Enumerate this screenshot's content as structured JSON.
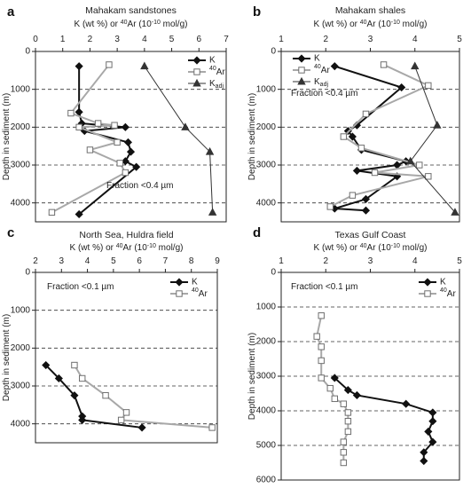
{
  "chart_data": [
    {
      "type": "line",
      "panel": "a",
      "title": "Mahakam sandstones",
      "xlabel": "K (wt %) or 40Ar (10-10 mol/g)",
      "ylabel": "Depth in sediment (m)",
      "xlim": [
        0,
        7
      ],
      "ylim": [
        0,
        4500
      ],
      "xticks": [
        0,
        1,
        2,
        3,
        4,
        5,
        6,
        7
      ],
      "yticks": [
        0,
        1000,
        2000,
        3000,
        4000
      ],
      "annotation": "Fraction <0.4 µm",
      "legend_position": "top-right",
      "series": [
        {
          "name": "K",
          "marker": "diamond",
          "color": "#111111",
          "points": [
            [
              1.6,
              390
            ],
            [
              1.6,
              1600
            ],
            [
              1.7,
              1900
            ],
            [
              3.3,
              2000
            ],
            [
              1.8,
              2100
            ],
            [
              3.4,
              2400
            ],
            [
              3.5,
              2650
            ],
            [
              3.3,
              2900
            ],
            [
              3.7,
              3050
            ],
            [
              1.6,
              4300
            ]
          ]
        },
        {
          "name": "40Ar",
          "marker": "square",
          "color": "#9a9a9a",
          "points": [
            [
              2.7,
              350
            ],
            [
              1.3,
              1630
            ],
            [
              2.3,
              1900
            ],
            [
              2.9,
              1950
            ],
            [
              1.6,
              2000
            ],
            [
              3.0,
              2400
            ],
            [
              2.0,
              2600
            ],
            [
              3.1,
              2950
            ],
            [
              3.3,
              3200
            ],
            [
              0.6,
              4250
            ]
          ]
        },
        {
          "name": "Kadj",
          "marker": "triangle",
          "color": "#333333",
          "points": [
            [
              4.0,
              390
            ],
            [
              5.5,
              2000
            ],
            [
              6.4,
              2650
            ],
            [
              6.5,
              4250
            ]
          ]
        }
      ]
    },
    {
      "type": "line",
      "panel": "b",
      "title": "Mahakam shales",
      "xlabel": "K (wt %) or 40Ar (10-10 mol/g)",
      "ylabel": "Depth in sediment (m)",
      "xlim": [
        1,
        5
      ],
      "ylim": [
        0,
        4500
      ],
      "xticks": [
        1,
        2,
        3,
        4,
        5
      ],
      "yticks": [
        0,
        1000,
        2000,
        3000,
        4000
      ],
      "annotation": "Fraction <0.4 µm",
      "legend_position": "top-left",
      "series": [
        {
          "name": "K",
          "marker": "diamond",
          "color": "#111111",
          "points": [
            [
              2.2,
              390
            ],
            [
              3.7,
              950
            ],
            [
              2.7,
              1950
            ],
            [
              2.5,
              2100
            ],
            [
              2.6,
              2250
            ],
            [
              2.8,
              2600
            ],
            [
              3.8,
              2900
            ],
            [
              3.6,
              3000
            ],
            [
              2.7,
              3150
            ],
            [
              3.6,
              3300
            ],
            [
              2.9,
              3900
            ],
            [
              2.2,
              4150
            ],
            [
              2.9,
              4200
            ]
          ]
        },
        {
          "name": "40Ar",
          "marker": "square",
          "color": "#9a9a9a",
          "points": [
            [
              3.3,
              350
            ],
            [
              4.3,
              900
            ],
            [
              2.9,
              1650
            ],
            [
              2.4,
              2250
            ],
            [
              2.8,
              2550
            ],
            [
              4.1,
              3000
            ],
            [
              3.1,
              3200
            ],
            [
              4.3,
              3300
            ],
            [
              2.6,
              3800
            ],
            [
              2.1,
              4100
            ]
          ]
        },
        {
          "name": "Kadj",
          "marker": "triangle",
          "color": "#333333",
          "points": [
            [
              4.0,
              390
            ],
            [
              4.5,
              1950
            ],
            [
              3.9,
              2900
            ],
            [
              4.9,
              4250
            ]
          ]
        }
      ]
    },
    {
      "type": "line",
      "panel": "c",
      "title": "North Sea, Huldra field",
      "xlabel": "K (wt %) or 40Ar (10-10 mol/g)",
      "ylabel": "Depth in sediment (m)",
      "xlim": [
        2,
        9
      ],
      "ylim": [
        0,
        4500
      ],
      "xticks": [
        2,
        3,
        4,
        5,
        6,
        7,
        8,
        9
      ],
      "yticks": [
        0,
        1000,
        2000,
        3000,
        4000
      ],
      "annotation": "Fraction <0.1 µm",
      "legend_position": "top-right",
      "series": [
        {
          "name": "K",
          "marker": "diamond",
          "color": "#111111",
          "points": [
            [
              2.4,
              2450
            ],
            [
              2.9,
              2800
            ],
            [
              3.5,
              3250
            ],
            [
              3.8,
              3800
            ],
            [
              3.8,
              3900
            ],
            [
              6.1,
              4100
            ]
          ]
        },
        {
          "name": "40Ar",
          "marker": "square",
          "color": "#9a9a9a",
          "points": [
            [
              3.5,
              2450
            ],
            [
              3.8,
              2800
            ],
            [
              4.7,
              3250
            ],
            [
              5.5,
              3700
            ],
            [
              5.3,
              3900
            ],
            [
              8.8,
              4100
            ]
          ]
        }
      ]
    },
    {
      "type": "line",
      "panel": "d",
      "title": "Texas Gulf Coast",
      "xlabel": "K (wt %) or 40Ar (10-10 mol/g)",
      "ylabel": "Depth in sediment (m)",
      "xlim": [
        1,
        5
      ],
      "ylim": [
        0,
        6000
      ],
      "xticks": [
        1,
        2,
        3,
        4,
        5
      ],
      "yticks": [
        0,
        1000,
        2000,
        3000,
        4000,
        5000,
        6000
      ],
      "annotation": "Fraction <0.1 µm",
      "legend_position": "top-right",
      "series": [
        {
          "name": "K",
          "marker": "diamond",
          "color": "#111111",
          "points": [
            [
              2.2,
              3050
            ],
            [
              2.5,
              3400
            ],
            [
              2.7,
              3550
            ],
            [
              3.8,
              3800
            ],
            [
              4.4,
              4050
            ],
            [
              4.4,
              4300
            ],
            [
              4.3,
              4600
            ],
            [
              4.4,
              4900
            ],
            [
              4.2,
              5200
            ],
            [
              4.2,
              5450
            ]
          ]
        },
        {
          "name": "40Ar",
          "marker": "square",
          "color": "#9a9a9a",
          "points": [
            [
              1.9,
              1250
            ],
            [
              1.8,
              1850
            ],
            [
              1.9,
              2150
            ],
            [
              1.9,
              2550
            ],
            [
              1.9,
              3050
            ],
            [
              2.1,
              3350
            ],
            [
              2.2,
              3650
            ],
            [
              2.4,
              3800
            ],
            [
              2.5,
              4050
            ],
            [
              2.5,
              4300
            ],
            [
              2.5,
              4600
            ],
            [
              2.4,
              4900
            ],
            [
              2.4,
              5200
            ],
            [
              2.4,
              5500
            ]
          ]
        }
      ]
    }
  ]
}
